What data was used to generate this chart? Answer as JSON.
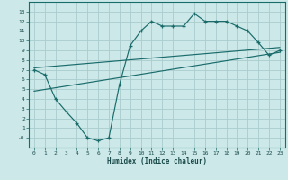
{
  "xlabel": "Humidex (Indice chaleur)",
  "bg_color": "#cce8e8",
  "grid_color": "#aacccc",
  "line_color": "#1a6b6b",
  "xlim": [
    -0.5,
    23.5
  ],
  "ylim": [
    -1,
    14
  ],
  "xticks": [
    0,
    1,
    2,
    3,
    4,
    5,
    6,
    7,
    8,
    9,
    10,
    11,
    12,
    13,
    14,
    15,
    16,
    17,
    18,
    19,
    20,
    21,
    22,
    23
  ],
  "yticks": [
    0,
    1,
    2,
    3,
    4,
    5,
    6,
    7,
    8,
    9,
    10,
    11,
    12,
    13
  ],
  "line1_x": [
    0,
    1,
    2,
    3,
    4,
    5,
    6,
    7,
    8,
    9,
    10,
    11,
    12,
    13,
    14,
    15,
    16,
    17,
    18,
    19,
    20,
    21,
    22,
    23
  ],
  "line1_y": [
    7.0,
    6.5,
    4.0,
    2.7,
    1.5,
    0.0,
    -0.3,
    0.0,
    5.5,
    9.5,
    11.0,
    12.0,
    11.5,
    11.5,
    11.5,
    12.8,
    12.0,
    12.0,
    12.0,
    11.5,
    11.0,
    9.8,
    8.5,
    9.0
  ],
  "line2_x": [
    0,
    23
  ],
  "line2_y": [
    7.2,
    9.3
  ],
  "line3_x": [
    0,
    23
  ],
  "line3_y": [
    4.8,
    8.8
  ],
  "xlabel_fontsize": 5.5,
  "tick_fontsize": 4.5
}
